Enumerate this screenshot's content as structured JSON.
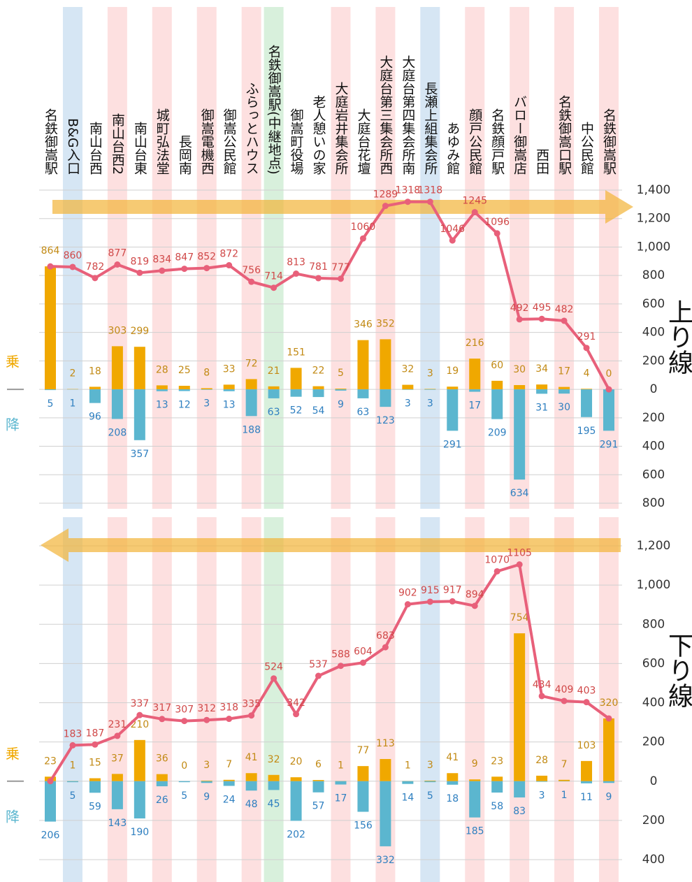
{
  "chart_data": [
    {
      "type": "bar-line",
      "title": "上り線",
      "categories": [
        "名鉄御嵩駅",
        "B&G入口",
        "南山台西",
        "南山台西2",
        "南山台東",
        "城町弘法堂",
        "長岡南",
        "御嵩電機西",
        "御嵩公民館",
        "ふらっとハウス",
        "名鉄御嵩駅(中継地点)",
        "御嵩町役場",
        "老人憩いの家",
        "大庭岩井集会所",
        "大庭台花壇",
        "大庭台第三集会所西",
        "大庭台第四集会所南",
        "長瀬上組集会所",
        "あゆみ館",
        "顔戸公民館",
        "名鉄顔戸駅",
        "バロー御嵩店",
        "西田",
        "名鉄御嵩口駅",
        "中公民館",
        "名鉄御嵩駅"
      ],
      "band_colors": [
        null,
        "#d6e6f4",
        null,
        "#fde0e0",
        null,
        "#fde0e0",
        null,
        "#fde0e0",
        null,
        "#fde0e0",
        "#d8f0dc",
        null,
        null,
        "#fde0e0",
        null,
        "#fde0e0",
        null,
        "#d6e6f4",
        null,
        "#fde0e0",
        null,
        "#fde0e0",
        null,
        "#fde0e0",
        null,
        "#fde0e0"
      ],
      "ylim": [
        -800,
        1400
      ],
      "yticks": [
        {
          "value": -800,
          "label": "800"
        },
        {
          "value": -600,
          "label": "600"
        },
        {
          "value": -400,
          "label": "400"
        },
        {
          "value": -200,
          "label": "200"
        },
        0,
        200,
        400,
        600,
        800,
        {
          "value": 1000,
          "label": "1,000"
        },
        {
          "value": 1200,
          "label": "1,200"
        },
        {
          "value": 1400,
          "label": "1,400"
        }
      ],
      "grid": true,
      "series": [
        {
          "name": "乗",
          "color": "#f0a800",
          "label_color": "#c28a14",
          "direction": "up",
          "values": [
            864,
            2,
            18,
            303,
            299,
            28,
            25,
            8,
            33,
            72,
            21,
            151,
            22,
            5,
            346,
            352,
            32,
            3,
            19,
            216,
            60,
            30,
            34,
            17,
            4,
            0
          ]
        },
        {
          "name": "降",
          "color": "#5bb6cf",
          "label_color": "#2e7fc0",
          "direction": "down",
          "values": [
            5,
            1,
            96,
            208,
            357,
            13,
            12,
            3,
            13,
            188,
            63,
            52,
            54,
            9,
            63,
            123,
            3,
            3,
            291,
            17,
            209,
            634,
            31,
            30,
            195,
            291
          ]
        }
      ],
      "line": {
        "color": "#e8607a",
        "label_color": "#d04848",
        "values": [
          864,
          860,
          782,
          877,
          819,
          834,
          847,
          852,
          872,
          756,
          714,
          813,
          781,
          777,
          1060,
          1289,
          1318,
          1318,
          1046,
          1245,
          1096,
          492,
          495,
          482,
          291,
          0
        ],
        "value_labels": [
          null,
          "860",
          "782",
          "877",
          "819",
          "834",
          "847",
          "852",
          "872",
          "756",
          "714",
          "813",
          "781",
          "777",
          "1060",
          "1289",
          "1318",
          "1318",
          "1046",
          "1245",
          "1096",
          "492",
          "495",
          "482",
          "291",
          null
        ]
      }
    },
    {
      "type": "bar-line",
      "title": "下り線",
      "ylim": [
        -400,
        1200
      ],
      "yticks": [
        {
          "value": -400,
          "label": "400"
        },
        {
          "value": -200,
          "label": "200"
        },
        0,
        200,
        400,
        600,
        800,
        {
          "value": 1000,
          "label": "1,000"
        },
        {
          "value": 1200,
          "label": "1,200"
        }
      ],
      "grid": true,
      "series": [
        {
          "name": "乗",
          "color": "#f0a800",
          "label_color": "#c28a14",
          "direction": "up",
          "values": [
            23,
            1,
            15,
            37,
            210,
            36,
            0,
            3,
            7,
            41,
            32,
            20,
            6,
            1,
            77,
            113,
            1,
            3,
            41,
            9,
            23,
            754,
            28,
            7,
            103,
            320
          ]
        },
        {
          "name": "降",
          "color": "#5bb6cf",
          "label_color": "#2e7fc0",
          "direction": "down",
          "values": [
            206,
            5,
            59,
            143,
            190,
            26,
            5,
            9,
            24,
            48,
            45,
            202,
            57,
            17,
            156,
            332,
            14,
            5,
            18,
            185,
            58,
            83,
            3,
            1,
            11,
            9
          ]
        }
      ],
      "line": {
        "color": "#e8607a",
        "label_color": "#d04848",
        "values": [
          0,
          183,
          187,
          231,
          337,
          317,
          307,
          312,
          318,
          335,
          524,
          342,
          537,
          588,
          604,
          683,
          902,
          915,
          917,
          894,
          1070,
          1105,
          434,
          409,
          403,
          320
        ],
        "value_labels": [
          null,
          "183",
          "187",
          "231",
          "337",
          "317",
          "307",
          "312",
          "318",
          "335",
          "524",
          "342",
          "537",
          "588",
          "604",
          "683",
          "902",
          "915",
          "917",
          "894",
          "1070",
          "1105",
          "434",
          "409",
          "403",
          null
        ]
      }
    }
  ]
}
